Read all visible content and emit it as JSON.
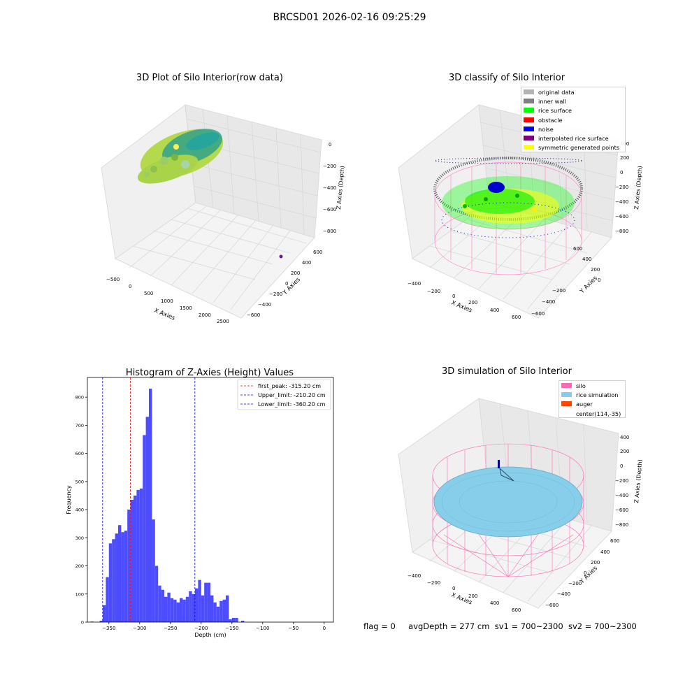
{
  "figure": {
    "suptitle": "BRCSD01 2026-02-16 09:25:29"
  },
  "panel_tl": {
    "title": "3D Plot of Silo Interior(row data)",
    "xlabel": "X Axies",
    "ylabel": "Y Axies",
    "zlabel": "Z Axies (Depth)",
    "xticks": [
      "−500",
      "0",
      "500",
      "1000",
      "1500",
      "2000",
      "2500"
    ],
    "yticks": [
      "600",
      "400",
      "200",
      "0",
      "−200",
      "−400",
      "−600"
    ],
    "zticks": [
      "0",
      "−200",
      "−400",
      "−600",
      "−800"
    ]
  },
  "panel_tr": {
    "title": "3D classify of Silo Interior",
    "xlabel": "X Axies",
    "ylabel": "Y Axies",
    "zlabel": "Z Axies (Depth)",
    "xticks": [
      "−400",
      "−200",
      "0",
      "200",
      "400",
      "600"
    ],
    "yticks": [
      "600",
      "400",
      "200",
      "0",
      "−200",
      "−400",
      "−600"
    ],
    "zticks": [
      "400",
      "200",
      "0",
      "−200",
      "−400",
      "−600",
      "−800"
    ],
    "legend": [
      {
        "label": "original data",
        "color": "#b3b3b3"
      },
      {
        "label": "inner wall",
        "color": "#808080"
      },
      {
        "label": "rice surface",
        "color": "#00ff00"
      },
      {
        "label": "obstacle",
        "color": "#ff0000"
      },
      {
        "label": "noise",
        "color": "#0000ff"
      },
      {
        "label": "interpolated rice surface",
        "color": "#800080"
      },
      {
        "label": "symmetric generated points",
        "color": "#ffff00"
      }
    ]
  },
  "panel_br": {
    "title": "3D simulation of Silo Interior",
    "xlabel": "X Axies",
    "ylabel": "Y Axies",
    "zlabel": "Z Axies (Depth)",
    "xticks": [
      "−400",
      "−200",
      "0",
      "200",
      "400",
      "600"
    ],
    "yticks": [
      "600",
      "400",
      "200",
      "0",
      "−200",
      "−400",
      "−600"
    ],
    "zticks": [
      "400",
      "200",
      "0",
      "−200",
      "−400",
      "−600",
      "−800"
    ],
    "legend": [
      {
        "label": "silo",
        "color": "#ff69b4"
      },
      {
        "label": "rice simulation",
        "color": "#87ceeb"
      },
      {
        "label": "auger",
        "color": "#ff4500"
      },
      {
        "label": "center(114,-35)",
        "color": ""
      }
    ]
  },
  "footer": {
    "flag": "flag = 0",
    "avg": "avgDepth = 277 cm",
    "sv1": "sv1 = 700~2300",
    "sv2": "sv2 = 700~2300"
  },
  "chart_data": [
    {
      "type": "bar",
      "title": "Histogram of Z-Axies (Height) Values",
      "xlabel": "Depth (cm)",
      "ylabel": "Frequency",
      "xlim": [
        -385,
        15
      ],
      "ylim": [
        0,
        870
      ],
      "xticks": [
        -350,
        -300,
        -250,
        -200,
        -150,
        -100,
        -50,
        0
      ],
      "yticks": [
        0,
        100,
        200,
        300,
        400,
        500,
        600,
        700,
        800
      ],
      "bin_start": -380,
      "bin_width": 5,
      "bar_color": "#4d4dff",
      "values": [
        2,
        0,
        0,
        5,
        60,
        160,
        280,
        295,
        315,
        345,
        320,
        325,
        400,
        435,
        450,
        470,
        475,
        665,
        730,
        830,
        365,
        200,
        130,
        115,
        90,
        105,
        85,
        80,
        70,
        85,
        80,
        90,
        110,
        100,
        120,
        150,
        95,
        140,
        140,
        95,
        70,
        55,
        75,
        80,
        95,
        10,
        15,
        15,
        0,
        5
      ],
      "lines": [
        {
          "label": "first_peak: -315.20 cm",
          "x": -315.2,
          "color": "#ff0000"
        },
        {
          "label": "Upper_limit: -210.20 cm",
          "x": -210.2,
          "color": "#0000ff"
        },
        {
          "label": "Lower_limit: -360.20 cm",
          "x": -360.2,
          "color": "#0000ff"
        }
      ],
      "legend_position": "top-right",
      "grid": false
    }
  ]
}
